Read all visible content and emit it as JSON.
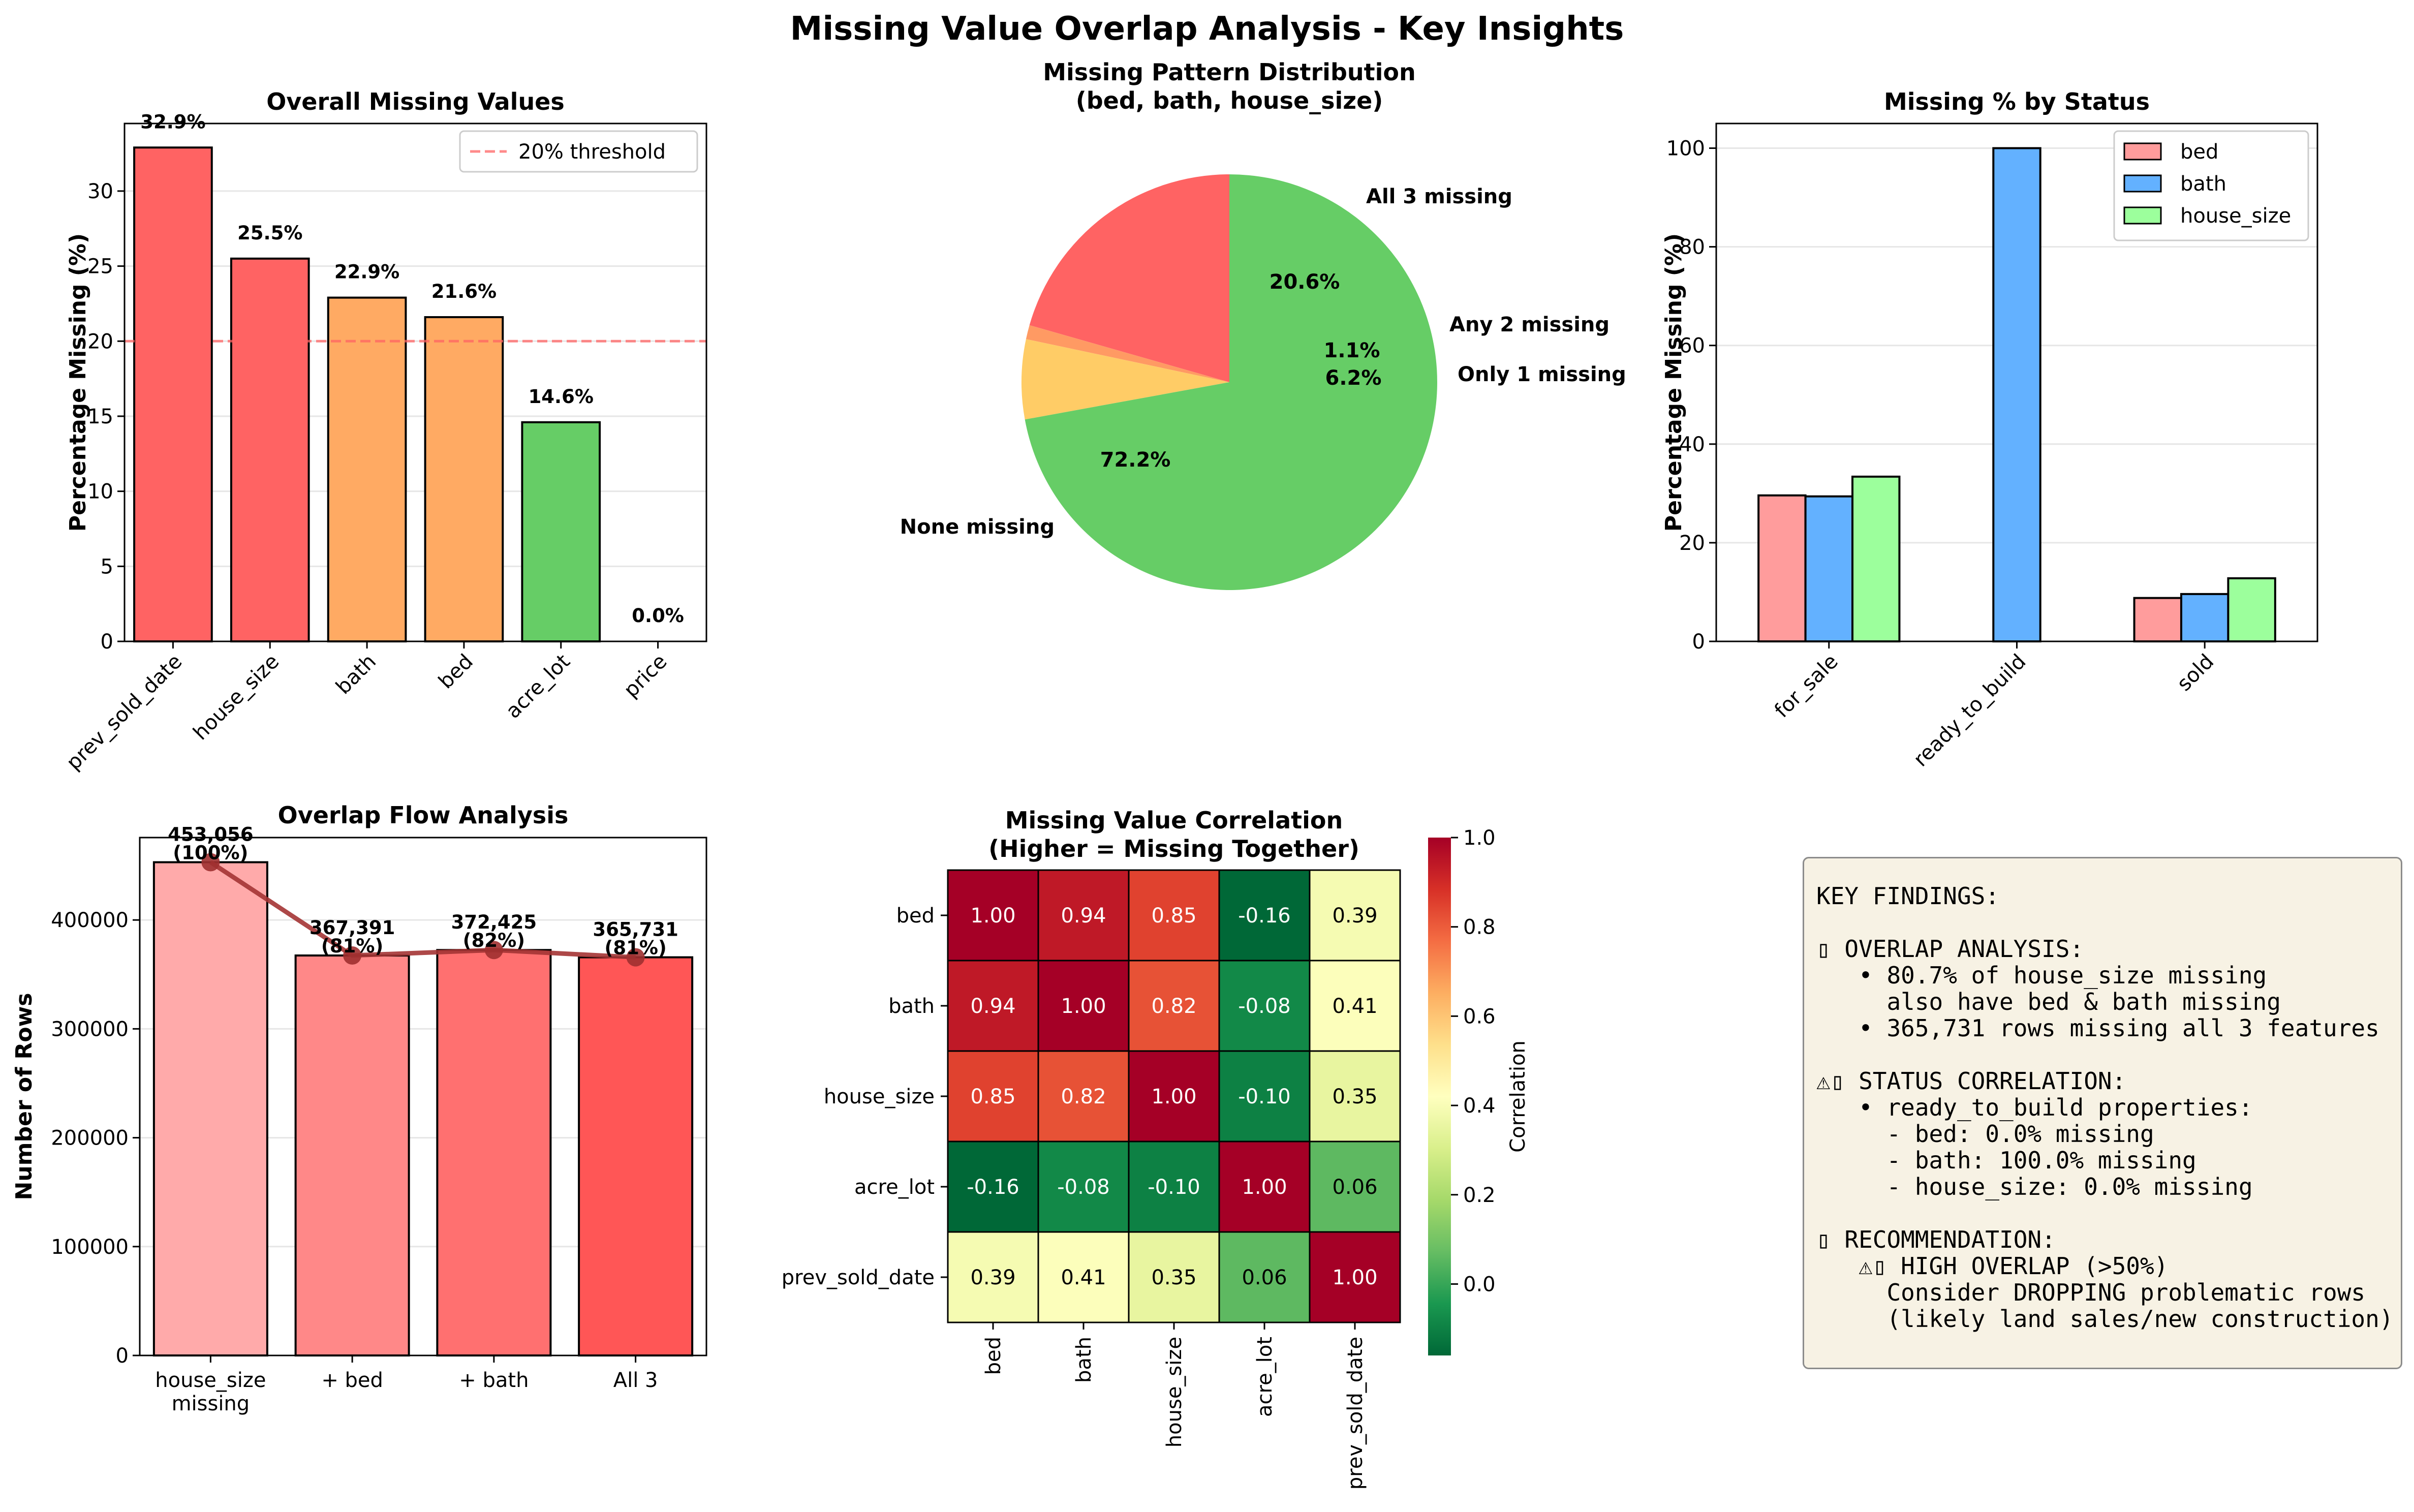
{
  "suptitle": "Missing Value Overlap Analysis - Key Insights",
  "colors": {
    "red": "#ff6363",
    "orange": "#ffaa63",
    "green": "#66cd66",
    "pie_orange": "#ff9a63",
    "pie_yellow": "#ffcc66",
    "bed": "#ff9c9c",
    "bath": "#63b1ff",
    "house_size": "#9cff9c",
    "flow_line": "#a43434"
  },
  "chart_data": [
    {
      "type": "bar",
      "title": "Overall Missing Values",
      "ylabel": "Percentage Missing (%)",
      "categories": [
        "prev_sold_date",
        "house_size",
        "bath",
        "bed",
        "acre_lot",
        "price"
      ],
      "values": [
        32.9,
        25.5,
        22.9,
        21.6,
        14.6,
        0.0
      ],
      "data_labels": [
        "32.9%",
        "25.5%",
        "22.9%",
        "21.6%",
        "14.6%",
        "0.0%"
      ],
      "yticks": [
        0,
        5,
        10,
        15,
        20,
        25,
        30
      ],
      "ylim": [
        0,
        34.5
      ],
      "threshold": 20,
      "legend": [
        "20% threshold"
      ],
      "legend_loc": "top-right"
    },
    {
      "type": "pie",
      "title": "Missing Pattern Distribution\n(bed, bath, house_size)",
      "labels": [
        "All 3 missing",
        "Any 2 missing",
        "Only 1 missing",
        "None missing"
      ],
      "values": [
        20.6,
        1.1,
        6.2,
        72.2
      ],
      "pct_labels": [
        "20.6%",
        "1.1%",
        "6.2%",
        "72.2%"
      ]
    },
    {
      "type": "bar",
      "title": "Missing % by Status",
      "ylabel": "Percentage Missing (%)",
      "categories": [
        "for_sale",
        "ready_to_build",
        "sold"
      ],
      "series": [
        {
          "name": "bed",
          "values": [
            29.6,
            0.0,
            8.8
          ]
        },
        {
          "name": "bath",
          "values": [
            29.4,
            100.0,
            9.6
          ]
        },
        {
          "name": "house_size",
          "values": [
            33.4,
            0.0,
            12.8
          ]
        }
      ],
      "yticks": [
        0,
        20,
        40,
        60,
        80,
        100
      ],
      "ylim": [
        0,
        105
      ],
      "legend_loc": "top-right"
    },
    {
      "type": "bar",
      "title": "Overlap Flow Analysis",
      "ylabel": "Number of Rows",
      "categories": [
        "house_size\nmissing",
        "+ bed",
        "+ bath",
        "All 3"
      ],
      "values": [
        453056,
        367391,
        372425,
        365731
      ],
      "data_labels": [
        "453,056\n(100%)",
        "367,391\n(81%)",
        "372,425\n(82%)",
        "365,731\n(81%)"
      ],
      "yticks": [
        0,
        100000,
        200000,
        300000,
        400000
      ],
      "ylim": [
        0,
        475700
      ]
    },
    {
      "type": "heatmap",
      "title": "Missing Value Correlation\n(Higher = Missing Together)",
      "labels": [
        "bed",
        "bath",
        "house_size",
        "acre_lot",
        "prev_sold_date"
      ],
      "matrix": [
        [
          1.0,
          0.94,
          0.85,
          -0.16,
          0.39
        ],
        [
          0.94,
          1.0,
          0.82,
          -0.08,
          0.41
        ],
        [
          0.85,
          0.82,
          1.0,
          -0.1,
          0.35
        ],
        [
          -0.16,
          -0.08,
          -0.1,
          1.0,
          0.06
        ],
        [
          0.39,
          0.41,
          0.35,
          0.06,
          1.0
        ]
      ],
      "colorbar_label": "Correlation",
      "colorbar_ticks": [
        0.0,
        0.2,
        0.4,
        0.6,
        0.8,
        1.0
      ],
      "vmin": -0.16,
      "vmax": 1.0
    }
  ],
  "findings": [
    "KEY FINDINGS:",
    "",
    "▯ OVERLAP ANALYSIS:",
    "   • 80.7% of house_size missing",
    "     also have bed & bath missing",
    "   • 365,731 rows missing all 3 features",
    "",
    "⚠▯ STATUS CORRELATION:",
    "   • ready_to_build properties:",
    "     - bed: 0.0% missing",
    "     - bath: 100.0% missing",
    "     - house_size: 0.0% missing",
    "",
    "▯ RECOMMENDATION:",
    "   ⚠▯ HIGH OVERLAP (>50%)",
    "     Consider DROPPING problematic rows",
    "     (likely land sales/new construction)"
  ]
}
